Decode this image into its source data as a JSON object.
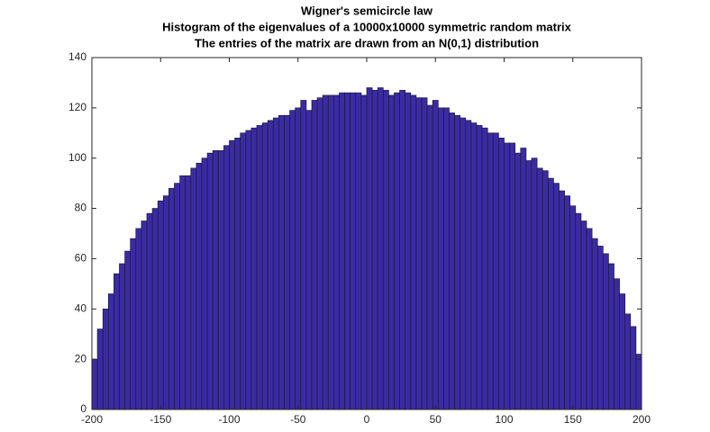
{
  "chart_data": {
    "type": "histogram",
    "title": [
      "Wigner's semicircle law",
      "Histogram of the eigenvalues of a 10000x10000 symmetric random matrix",
      "The entries of the matrix are drawn from an N(0,1) distribution"
    ],
    "bins": [
      -200,
      -196,
      -192,
      -188,
      -184,
      -180,
      -176,
      -172,
      -168,
      -164,
      -160,
      -156,
      -152,
      -148,
      -144,
      -140,
      -136,
      -132,
      -128,
      -124,
      -120,
      -116,
      -112,
      -108,
      -104,
      -100,
      -96,
      -92,
      -88,
      -84,
      -80,
      -76,
      -72,
      -68,
      -64,
      -60,
      -56,
      -52,
      -48,
      -44,
      -40,
      -36,
      -32,
      -28,
      -24,
      -20,
      -16,
      -12,
      -8,
      -4,
      0,
      4,
      8,
      12,
      16,
      20,
      24,
      28,
      32,
      36,
      40,
      44,
      48,
      52,
      56,
      60,
      64,
      68,
      72,
      76,
      80,
      84,
      88,
      92,
      96,
      100,
      104,
      108,
      112,
      116,
      120,
      124,
      128,
      132,
      136,
      140,
      144,
      148,
      152,
      156,
      160,
      164,
      168,
      172,
      176,
      180,
      184,
      188,
      192,
      196,
      200
    ],
    "values": [
      20,
      32,
      40,
      46,
      54,
      58,
      63,
      68,
      72,
      75,
      78,
      80,
      83,
      85,
      88,
      90,
      93,
      93,
      96,
      98,
      100,
      102,
      103,
      103,
      105,
      107,
      108,
      110,
      111,
      112,
      113,
      114,
      115,
      116,
      117,
      117,
      119,
      120,
      123,
      119,
      123,
      124,
      125,
      125,
      125,
      126,
      126,
      126,
      126,
      125,
      128,
      127,
      128,
      127,
      125,
      126,
      127,
      126,
      125,
      124,
      124,
      121,
      123,
      120,
      120,
      118,
      117,
      116,
      115,
      114,
      113,
      112,
      110,
      110,
      108,
      106,
      106,
      102,
      104,
      99,
      100,
      96,
      95,
      92,
      90,
      87,
      85,
      81,
      78,
      75,
      72,
      68,
      65,
      62,
      58,
      52,
      46,
      38,
      33,
      22
    ],
    "color": "#3b2ba3",
    "xlim": [
      -200,
      200
    ],
    "xticks": [
      -200,
      -150,
      -100,
      -50,
      0,
      50,
      100,
      150,
      200
    ],
    "ylim": [
      0,
      140
    ],
    "yticks": [
      0,
      20,
      40,
      60,
      80,
      100,
      120,
      140
    ]
  }
}
